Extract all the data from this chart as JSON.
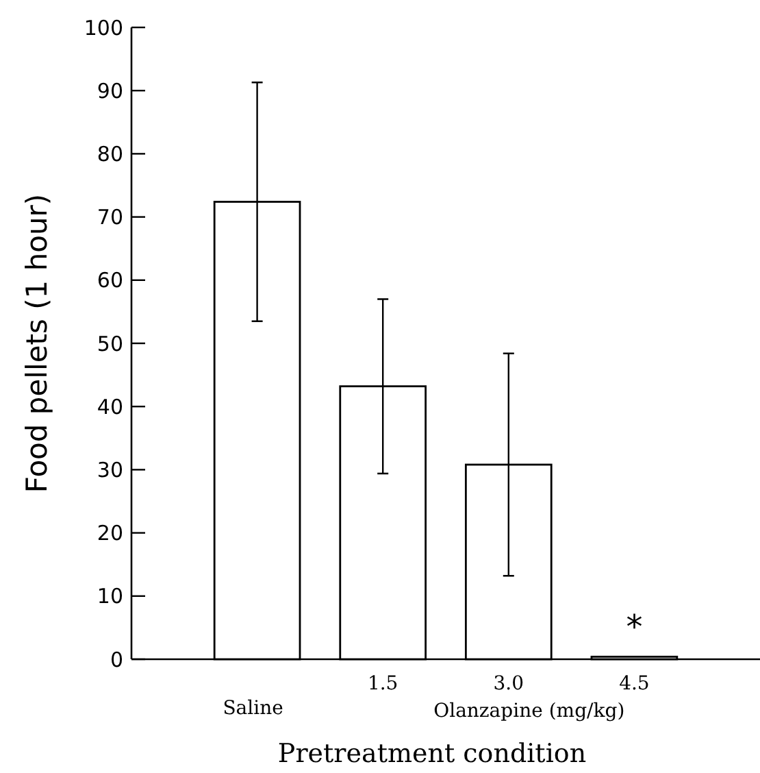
{
  "chart_data": {
    "type": "bar",
    "xlabel": "Pretreatment condition",
    "ylabel": "Food pellets (1 hour)",
    "categories": [
      "Saline",
      "1.5",
      "3.0",
      "4.5"
    ],
    "values": [
      72.4,
      43.2,
      30.8,
      0.4
    ],
    "errors": [
      18.9,
      13.8,
      17.6,
      null
    ],
    "color": "#ffffff",
    "ylim": [
      0,
      100
    ],
    "yticks": [
      0,
      10,
      20,
      30,
      40,
      50,
      60,
      70,
      80,
      90,
      100
    ],
    "grid": false,
    "annotations": [
      "Olanzapine (mg/kg)",
      "*"
    ]
  }
}
